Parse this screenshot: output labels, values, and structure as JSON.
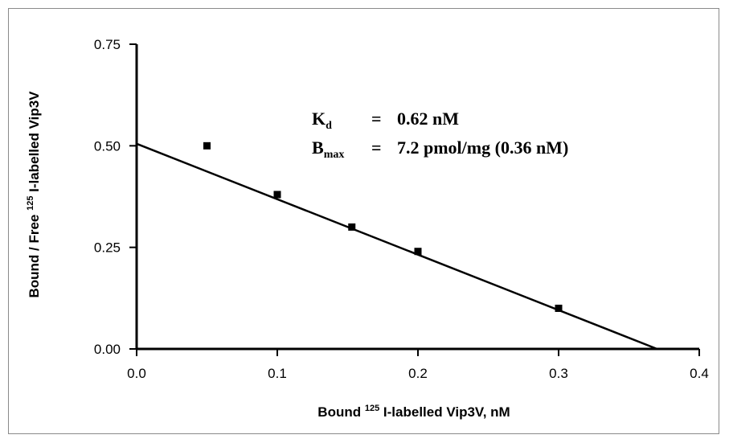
{
  "chart_data": {
    "type": "scatter",
    "title": "",
    "xlabel": {
      "pre": "Bound ",
      "sup": "125",
      "post": " I-labelled Vip3V, nM"
    },
    "ylabel": {
      "pre": "Bound / Free ",
      "sup": "125",
      "post": " I-labelled Vip3V"
    },
    "xlim": [
      0.0,
      0.4
    ],
    "ylim": [
      0.0,
      0.75
    ],
    "xticks": [
      "0.0",
      "0.1",
      "0.2",
      "0.3",
      "0.4"
    ],
    "yticks": [
      "0.00",
      "0.25",
      "0.50",
      "0.75"
    ],
    "points": [
      {
        "x": 0.05,
        "y": 0.5
      },
      {
        "x": 0.1,
        "y": 0.38
      },
      {
        "x": 0.153,
        "y": 0.3
      },
      {
        "x": 0.2,
        "y": 0.24
      },
      {
        "x": 0.3,
        "y": 0.1
      }
    ],
    "fit_line": {
      "x": [
        0.0,
        0.37
      ],
      "y": [
        0.505,
        0.0
      ]
    },
    "annotations": {
      "kd": {
        "symbol": "K",
        "sub": "d",
        "eq": "=",
        "value": "0.62 nM"
      },
      "bmax": {
        "symbol": "B",
        "sub": "max",
        "eq": "=",
        "value": "7.2 pmol/mg (0.36 nM)"
      }
    }
  }
}
